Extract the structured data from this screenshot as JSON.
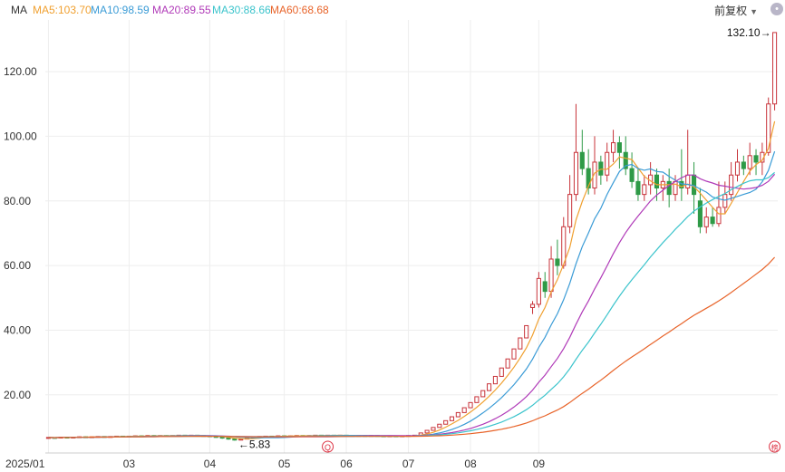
{
  "legend": {
    "title": "MA",
    "ma5": "MA5:103.70",
    "ma10": "MA10:98.59",
    "ma20": "MA20:89.55",
    "ma30": "MA30:88.66",
    "ma60": "MA60:68.68"
  },
  "controls": {
    "adjust_label": "前复权",
    "settings_icon": "gear-icon"
  },
  "colors": {
    "up": "#c8333a",
    "down": "#2e9a47",
    "ma5": "#f0a030",
    "ma10": "#3a9bd6",
    "ma20": "#b03ab8",
    "ma30": "#3cc4cc",
    "ma60": "#e8642a",
    "grid": "#eeeeee"
  },
  "annotations": {
    "max_label": "132.10→",
    "min_label": "←5.83",
    "q_marker": "Q",
    "bang_marker": "榜"
  },
  "chart_data": {
    "type": "candlestick",
    "title": "",
    "xlabel": "",
    "ylabel": "",
    "ylim": [
      2,
      136
    ],
    "y_ticks": [
      "20.00",
      "40.00",
      "60.00",
      "80.00",
      "100.00",
      "120.00"
    ],
    "x_ticks": [
      "2025/01",
      "03",
      "04",
      "05",
      "06",
      "07",
      "08",
      "09"
    ],
    "max_price": 132.1,
    "min_price": 5.83,
    "grid": true,
    "ma_final": {
      "MA5": 103.7,
      "MA10": 98.59,
      "MA20": 89.55,
      "MA30": 88.66,
      "MA60": 68.68
    },
    "candles": [
      [
        6.6,
        6.8,
        6.4,
        6.9
      ],
      [
        6.8,
        6.7,
        6.6,
        6.9
      ],
      [
        6.7,
        6.9,
        6.6,
        7.0
      ],
      [
        6.9,
        6.8,
        6.7,
        7.0
      ],
      [
        6.8,
        6.9,
        6.7,
        7.0
      ],
      [
        6.9,
        7.0,
        6.8,
        7.1
      ],
      [
        7.0,
        6.9,
        6.8,
        7.1
      ],
      [
        6.9,
        7.0,
        6.8,
        7.1
      ],
      [
        7.0,
        7.1,
        6.9,
        7.2
      ],
      [
        7.1,
        7.0,
        6.9,
        7.2
      ],
      [
        7.0,
        7.1,
        6.9,
        7.2
      ],
      [
        7.1,
        7.2,
        7.0,
        7.3
      ],
      [
        7.2,
        7.1,
        7.0,
        7.3
      ],
      [
        7.1,
        7.2,
        7.0,
        7.3
      ],
      [
        7.2,
        7.3,
        7.1,
        7.4
      ],
      [
        7.3,
        7.2,
        7.1,
        7.4
      ],
      [
        7.2,
        7.4,
        7.1,
        7.5
      ],
      [
        7.4,
        7.3,
        7.2,
        7.5
      ],
      [
        7.3,
        7.4,
        7.2,
        7.5
      ],
      [
        7.4,
        7.3,
        7.2,
        7.5
      ],
      [
        7.3,
        7.4,
        7.2,
        7.5
      ],
      [
        7.4,
        7.5,
        7.3,
        7.6
      ],
      [
        7.5,
        7.4,
        7.3,
        7.6
      ],
      [
        7.4,
        7.5,
        7.3,
        7.6
      ],
      [
        7.5,
        7.4,
        7.3,
        7.6
      ],
      [
        7.4,
        7.3,
        7.1,
        7.5
      ],
      [
        7.3,
        7.1,
        6.9,
        7.4
      ],
      [
        7.1,
        6.9,
        6.7,
        7.2
      ],
      [
        6.9,
        6.6,
        6.4,
        7.0
      ],
      [
        6.6,
        6.3,
        6.1,
        6.7
      ],
      [
        6.3,
        6.0,
        5.83,
        6.4
      ],
      [
        6.0,
        6.3,
        5.9,
        6.4
      ],
      [
        6.3,
        6.6,
        6.2,
        6.7
      ],
      [
        6.6,
        6.9,
        6.5,
        7.0
      ],
      [
        6.9,
        7.1,
        6.8,
        7.2
      ],
      [
        7.1,
        7.2,
        7.0,
        7.3
      ],
      [
        7.2,
        7.1,
        7.0,
        7.3
      ],
      [
        7.1,
        7.3,
        7.0,
        7.4
      ],
      [
        7.3,
        7.2,
        7.1,
        7.4
      ],
      [
        7.2,
        7.3,
        7.1,
        7.4
      ],
      [
        7.3,
        7.4,
        7.2,
        7.5
      ],
      [
        7.4,
        7.3,
        7.2,
        7.5
      ],
      [
        7.3,
        7.4,
        7.2,
        7.5
      ],
      [
        7.4,
        7.5,
        7.3,
        7.6
      ],
      [
        7.5,
        7.4,
        7.3,
        7.6
      ],
      [
        7.4,
        7.5,
        7.3,
        7.6
      ],
      [
        7.5,
        7.4,
        7.3,
        7.6
      ],
      [
        7.4,
        7.5,
        7.3,
        7.6
      ],
      [
        7.5,
        7.4,
        7.3,
        7.6
      ],
      [
        7.4,
        7.3,
        7.2,
        7.5
      ],
      [
        7.3,
        7.4,
        7.2,
        7.5
      ],
      [
        7.4,
        7.3,
        7.2,
        7.5
      ],
      [
        7.3,
        7.4,
        7.2,
        7.5
      ],
      [
        7.4,
        7.3,
        7.2,
        7.5
      ],
      [
        7.3,
        7.2,
        7.1,
        7.4
      ],
      [
        7.2,
        7.3,
        7.1,
        7.4
      ],
      [
        7.3,
        7.2,
        7.1,
        7.4
      ],
      [
        7.2,
        7.3,
        7.1,
        7.4
      ],
      [
        7.3,
        7.4,
        7.2,
        7.5
      ],
      [
        7.4,
        7.5,
        7.3,
        7.6
      ],
      [
        7.5,
        8.2,
        7.5,
        8.2
      ],
      [
        8.2,
        9.0,
        8.2,
        9.0
      ],
      [
        9.0,
        9.9,
        9.0,
        9.9
      ],
      [
        9.9,
        10.9,
        9.9,
        10.9
      ],
      [
        10.9,
        12.0,
        10.9,
        12.0
      ],
      [
        12.0,
        13.2,
        12.0,
        13.2
      ],
      [
        13.2,
        14.5,
        13.2,
        14.5
      ],
      [
        14.5,
        16.0,
        14.5,
        16.0
      ],
      [
        16.0,
        17.6,
        16.0,
        17.6
      ],
      [
        17.6,
        19.4,
        17.6,
        19.4
      ],
      [
        19.4,
        21.3,
        19.4,
        21.3
      ],
      [
        21.3,
        23.4,
        21.3,
        23.4
      ],
      [
        23.4,
        25.7,
        23.4,
        25.7
      ],
      [
        25.7,
        28.3,
        25.7,
        28.3
      ],
      [
        28.3,
        31.1,
        28.3,
        31.1
      ],
      [
        31.1,
        34.2,
        31.1,
        34.2
      ],
      [
        34.2,
        37.6,
        34.2,
        37.6
      ],
      [
        37.6,
        41.4,
        37.6,
        41.4
      ],
      [
        47,
        48,
        45,
        49
      ],
      [
        48,
        56,
        47,
        58
      ],
      [
        55,
        52,
        50,
        58
      ],
      [
        52,
        62,
        50,
        66
      ],
      [
        62,
        60,
        57,
        68
      ],
      [
        60,
        72,
        59,
        75
      ],
      [
        72,
        82,
        70,
        88
      ],
      [
        82,
        95,
        80,
        110
      ],
      [
        95,
        90,
        88,
        102
      ],
      [
        90,
        84,
        82,
        96
      ],
      [
        84,
        92,
        82,
        100
      ],
      [
        92,
        88,
        85,
        94
      ],
      [
        88,
        95,
        86,
        98
      ],
      [
        95,
        98,
        92,
        102
      ],
      [
        98,
        95,
        90,
        100
      ],
      [
        95,
        90,
        88,
        100
      ],
      [
        90,
        86,
        84,
        95
      ],
      [
        86,
        82,
        80,
        90
      ],
      [
        82,
        85,
        80,
        88
      ],
      [
        85,
        88,
        82,
        92
      ],
      [
        88,
        84,
        80,
        90
      ],
      [
        84,
        86,
        80,
        88
      ],
      [
        86,
        82,
        78,
        90
      ],
      [
        82,
        86,
        80,
        88
      ],
      [
        86,
        84,
        80,
        96
      ],
      [
        84,
        88,
        82,
        102
      ],
      [
        88,
        82,
        76,
        92
      ],
      [
        80,
        72,
        70,
        84
      ],
      [
        72,
        75,
        70,
        78
      ],
      [
        75,
        73,
        72,
        78
      ],
      [
        73,
        78,
        72,
        86
      ],
      [
        78,
        82,
        76,
        86
      ],
      [
        82,
        88,
        80,
        92
      ],
      [
        88,
        92,
        86,
        96
      ],
      [
        92,
        90,
        88,
        94
      ],
      [
        90,
        94,
        88,
        98
      ],
      [
        94,
        92,
        88,
        96
      ],
      [
        92,
        95,
        88,
        98
      ],
      [
        95,
        110,
        94,
        112
      ],
      [
        110,
        132.1,
        108,
        132.1
      ]
    ]
  }
}
